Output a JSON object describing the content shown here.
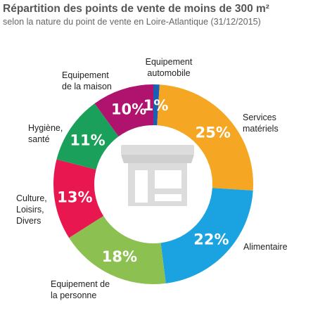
{
  "chart_data": {
    "type": "pie",
    "title": "Répartition des points de vente de moins de 300 m²",
    "subtitle": "selon la nature du point de vente en Loire-Atlantique (31/12/2015)",
    "value_unit": "%",
    "categories": [
      "Equipement automobile",
      "Services matériels",
      "Alimentaire",
      "Equipement de la personne",
      "Culture, Loisirs, Divers",
      "Hygiène, santé",
      "Equipement de la maison"
    ],
    "values": [
      1,
      25,
      22,
      18,
      13,
      11,
      10
    ],
    "value_labels": [
      "1%",
      "25%",
      "22%",
      "18%",
      "13%",
      "11%",
      "10%"
    ],
    "colors": [
      "#1a5fb4",
      "#f5a623",
      "#1aa3e0",
      "#8cc152",
      "#e8174f",
      "#1aa05a",
      "#b0136e"
    ],
    "legend": "labels next to slices",
    "center_icon": "shop-icon"
  }
}
